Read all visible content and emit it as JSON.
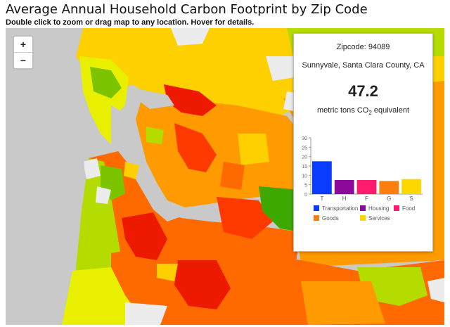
{
  "page": {
    "title": "Average Annual Household Carbon Footprint by Zip Code",
    "subtitle": "Double click to zoom or drag map to any location. Hover for details."
  },
  "zoom": {
    "in_label": "+",
    "out_label": "−"
  },
  "info_panel": {
    "zipcode_label": "Zipcode:",
    "zipcode": "94089",
    "place": "Sunnyvale, Santa Clara County, CA",
    "total": "47.2",
    "unit_prefix": "metric tons CO",
    "unit_sub": "2",
    "unit_suffix": " equivalent"
  },
  "chart_data": {
    "type": "bar",
    "categories": [
      "T",
      "H",
      "F",
      "G",
      "S"
    ],
    "values": [
      17.5,
      7.5,
      7.5,
      7,
      8
    ],
    "colors": [
      "#0a3cff",
      "#8b0a9a",
      "#ff1a6e",
      "#ff7f0e",
      "#ffd700"
    ],
    "ylim": [
      0,
      30
    ],
    "yticks": [
      0,
      5,
      10,
      15,
      20,
      25,
      30
    ],
    "legend": [
      {
        "label": "Transportation",
        "color": "#0a3cff"
      },
      {
        "label": "Housing",
        "color": "#8b0a9a"
      },
      {
        "label": "Food",
        "color": "#ff1a6e"
      },
      {
        "label": "Goods",
        "color": "#ff7f0e"
      },
      {
        "label": "Services",
        "color": "#ffd700"
      }
    ]
  },
  "map_colors": {
    "water": "#c9c9c9",
    "land_no_data": "#ececec",
    "scale": [
      "#3da800",
      "#7cc400",
      "#b5dc00",
      "#e8f000",
      "#ffd000",
      "#ff9a00",
      "#ff6a00",
      "#ff3a00",
      "#ee1a00"
    ]
  }
}
